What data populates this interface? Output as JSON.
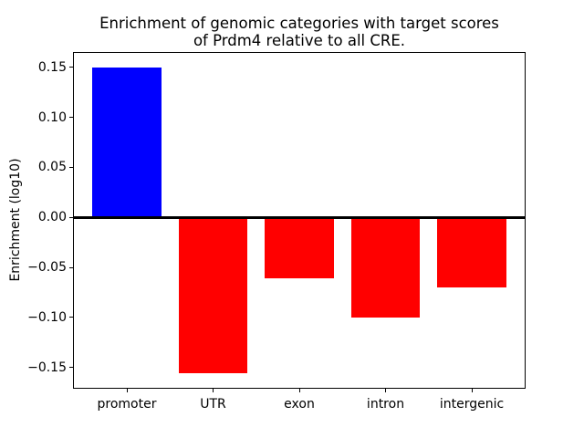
{
  "figure": {
    "background": "#ffffff",
    "text_color": "#000000"
  },
  "chart_data": {
    "type": "bar",
    "title": "Enrichment of genomic categories with target scores of Prdm4 relative to all CRE.",
    "title_lines": [
      "Enrichment of genomic categories with target scores",
      "of Prdm4 relative to all CRE."
    ],
    "xlabel": "",
    "ylabel": "Enrichment (log10)",
    "categories": [
      "promoter",
      "UTR",
      "exon",
      "intron",
      "intergenic"
    ],
    "values": [
      0.15,
      -0.156,
      -0.061,
      -0.1,
      -0.07
    ],
    "bar_colors": [
      "#0000ff",
      "#ff0000",
      "#ff0000",
      "#ff0000",
      "#ff0000"
    ],
    "bar_width": 0.8,
    "ylim": [
      -0.1713,
      0.1653
    ],
    "xlim": [
      -0.625,
      4.625
    ],
    "yticks": [
      0.15,
      0.1,
      0.05,
      0,
      -0.05,
      -0.1,
      -0.15
    ],
    "ytick_labels": [
      "0.15",
      "0.10",
      "0.05",
      "0.00",
      "−0.05",
      "−0.10",
      "−0.15"
    ],
    "zero_line": {
      "show": true,
      "color": "#000000"
    },
    "grid": false,
    "legend": "none",
    "axis_color": "#000000"
  }
}
